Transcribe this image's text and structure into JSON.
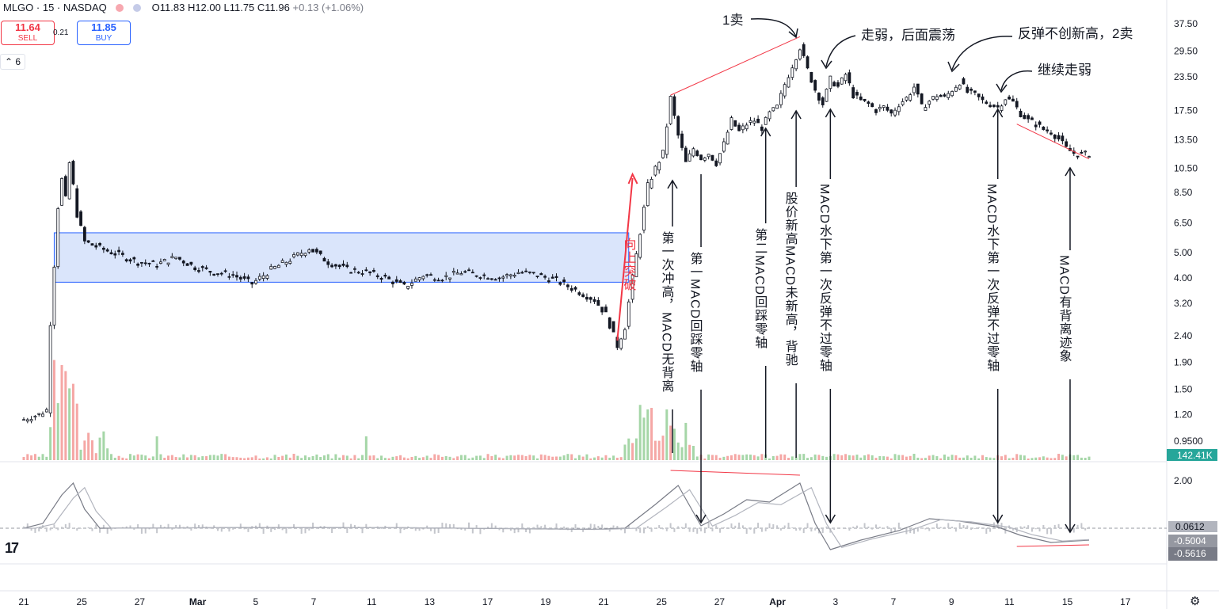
{
  "header": {
    "symbol": "MLGO · 15 · NASDAQ",
    "open": "11.83",
    "high": "12.00",
    "low": "11.75",
    "close": "11.96",
    "change": "+0.13 (+1.06%)",
    "sell_price": "11.64",
    "sell_label": "SELL",
    "buy_price": "11.85",
    "buy_label": "BUY",
    "spread": "0.21",
    "indicator_count": "6",
    "logo_text": "17"
  },
  "colors": {
    "sell": "#f23645",
    "buy": "#2962ff",
    "candle": "#131722",
    "vol_up": "#26a69a",
    "vol_down": "#ef5350",
    "annotation_red": "#f23645",
    "box_fill": "#d6e2fb",
    "box_border": "#2962ff"
  },
  "chart_data": {
    "type": "candlestick",
    "price_axis_labels": [
      "37.50",
      "29.50",
      "23.50",
      "17.50",
      "13.50",
      "10.50",
      "8.50",
      "6.50",
      "5.00",
      "4.00",
      "3.20",
      "2.40",
      "1.90",
      "1.50",
      "1.20",
      "0.9500"
    ],
    "price_axis_values": [
      37.5,
      29.5,
      23.5,
      17.5,
      13.5,
      10.5,
      8.5,
      6.5,
      5.0,
      4.0,
      3.2,
      2.4,
      1.9,
      1.5,
      1.2,
      0.95
    ],
    "x_ticks": [
      "21",
      "25",
      "27",
      "Mar",
      "5",
      "7",
      "11",
      "13",
      "17",
      "19",
      "21",
      "25",
      "27",
      "Apr",
      "3",
      "7",
      "9",
      "11",
      "15",
      "17"
    ],
    "volume_label": "142.41K",
    "macd_axis_labels": [
      "2.00",
      "0.0612",
      "-0.5004",
      "-0.5616"
    ],
    "macd_values": [
      2.0,
      0.0612,
      -0.5004,
      -0.5616
    ],
    "price_path": [
      [
        0,
        1.15
      ],
      [
        2,
        1.18
      ],
      [
        4,
        1.2
      ],
      [
        6,
        1.25
      ],
      [
        7,
        2.7
      ],
      [
        8,
        4.5
      ],
      [
        9,
        7.5
      ],
      [
        10,
        9.5
      ],
      [
        11,
        8.0
      ],
      [
        12,
        11.0
      ],
      [
        13,
        9.0
      ],
      [
        14,
        7.0
      ],
      [
        16,
        5.5
      ],
      [
        20,
        5.2
      ],
      [
        25,
        4.9
      ],
      [
        30,
        4.6
      ],
      [
        35,
        4.5
      ],
      [
        40,
        4.8
      ],
      [
        45,
        4.4
      ],
      [
        50,
        4.2
      ],
      [
        55,
        4.1
      ],
      [
        60,
        3.8
      ],
      [
        65,
        4.3
      ],
      [
        70,
        4.7
      ],
      [
        75,
        5.2
      ],
      [
        80,
        4.6
      ],
      [
        85,
        4.3
      ],
      [
        90,
        4.2
      ],
      [
        95,
        4.0
      ],
      [
        100,
        3.7
      ],
      [
        105,
        4.1
      ],
      [
        110,
        4.0
      ],
      [
        115,
        4.2
      ],
      [
        120,
        4.1
      ],
      [
        125,
        4.0
      ],
      [
        130,
        4.2
      ],
      [
        135,
        4.1
      ],
      [
        140,
        3.9
      ],
      [
        145,
        3.6
      ],
      [
        150,
        3.3
      ],
      [
        153,
        2.9
      ],
      [
        156,
        2.2
      ],
      [
        158,
        2.6
      ],
      [
        160,
        4.0
      ],
      [
        162,
        6.0
      ],
      [
        164,
        9.0
      ],
      [
        166,
        10.5
      ],
      [
        168,
        12.0
      ],
      [
        170,
        19.5
      ],
      [
        172,
        14.0
      ],
      [
        174,
        11.0
      ],
      [
        176,
        12.5
      ],
      [
        178,
        11.5
      ],
      [
        180,
        12.0
      ],
      [
        182,
        11.0
      ],
      [
        184,
        13.0
      ],
      [
        186,
        16.0
      ],
      [
        188,
        14.5
      ],
      [
        190,
        15.5
      ],
      [
        192,
        16.0
      ],
      [
        194,
        15.0
      ],
      [
        196,
        17.0
      ],
      [
        198,
        18.0
      ],
      [
        200,
        22.0
      ],
      [
        202,
        26.0
      ],
      [
        204,
        30.5
      ],
      [
        206,
        25.0
      ],
      [
        208,
        21.0
      ],
      [
        210,
        18.5
      ],
      [
        212,
        23.0
      ],
      [
        214,
        21.5
      ],
      [
        216,
        24.0
      ],
      [
        218,
        20.0
      ],
      [
        220,
        19.0
      ],
      [
        222,
        18.5
      ],
      [
        224,
        17.5
      ],
      [
        226,
        18.0
      ],
      [
        228,
        17.0
      ],
      [
        230,
        18.5
      ],
      [
        232,
        19.5
      ],
      [
        234,
        21.5
      ],
      [
        236,
        18.0
      ],
      [
        238,
        19.0
      ],
      [
        240,
        20.0
      ],
      [
        242,
        19.5
      ],
      [
        244,
        21.0
      ],
      [
        246,
        22.5
      ],
      [
        248,
        20.5
      ],
      [
        250,
        20.0
      ],
      [
        252,
        19.0
      ],
      [
        254,
        18.5
      ],
      [
        256,
        18.0
      ],
      [
        258,
        19.5
      ],
      [
        260,
        18.8
      ],
      [
        262,
        17.0
      ],
      [
        264,
        16.0
      ],
      [
        266,
        15.5
      ],
      [
        268,
        14.8
      ],
      [
        270,
        14.5
      ],
      [
        272,
        13.6
      ],
      [
        274,
        12.5
      ],
      [
        276,
        12.0
      ],
      [
        278,
        11.8
      ],
      [
        280,
        11.96
      ]
    ],
    "annotations": [
      "1卖",
      "走弱，后面震荡",
      "反弹不创新高，2卖",
      "继续走弱",
      "第一次冲高，MACD无背离",
      "第一MACD回踩零轴",
      "第二MACD回踩零轴",
      "股价新高MACD未新高，背驰",
      "MACD水下第一次反弹不过零轴",
      "MACD水下第一次反弹不过零轴",
      "MACD有背离迹象",
      "向上突破"
    ]
  }
}
